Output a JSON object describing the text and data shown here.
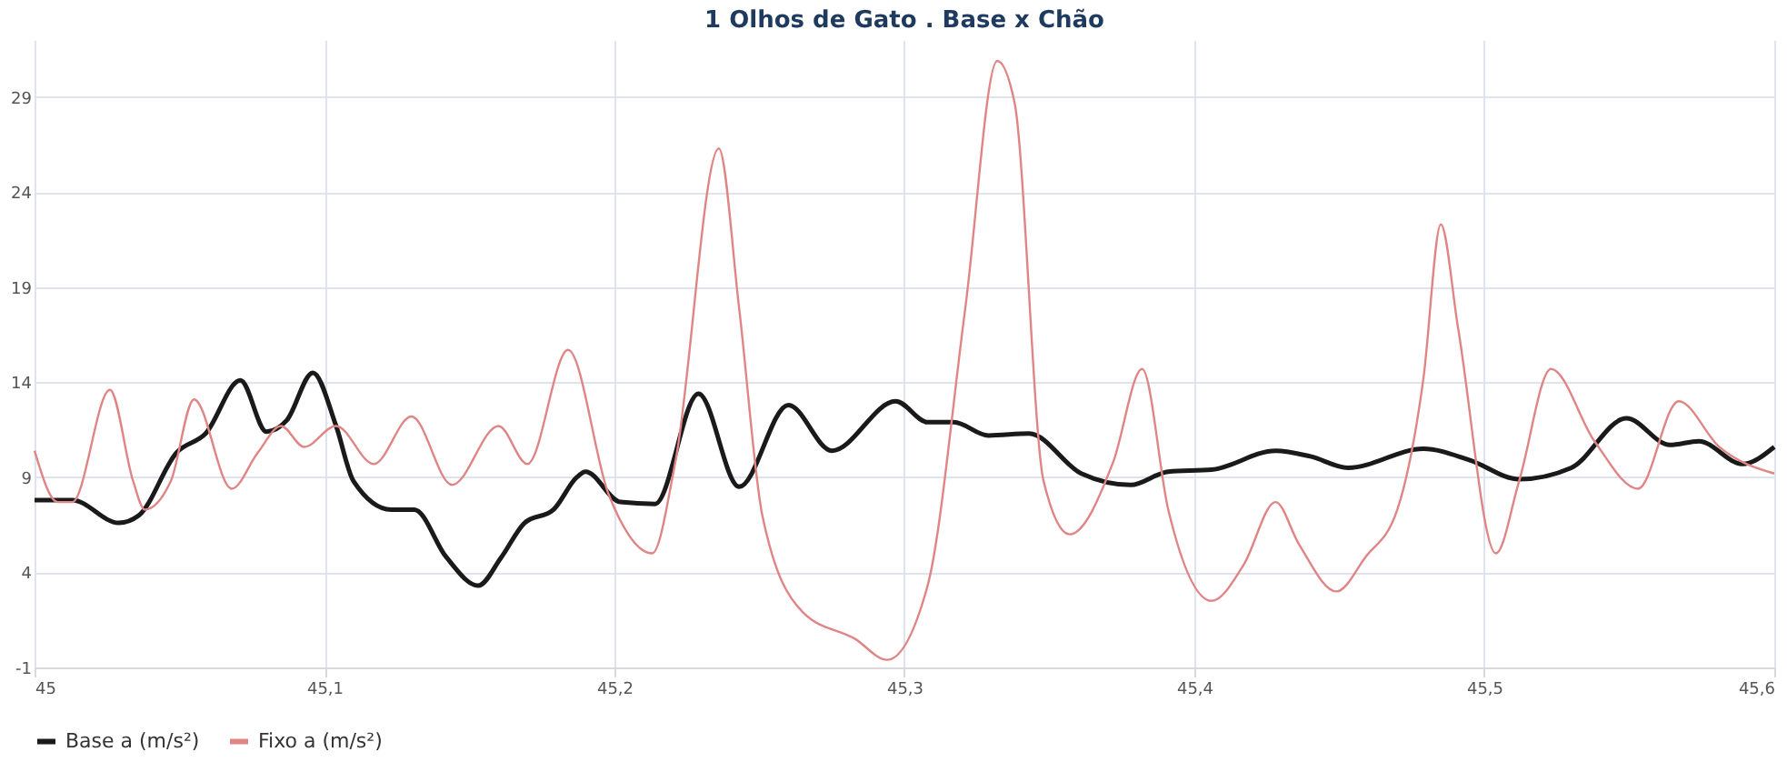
{
  "chart_data": {
    "type": "line",
    "title": "1 Olhos de Gato . Base x Chão",
    "series": [
      {
        "name": "Base a (m/s²)",
        "color": "#1a1a1a",
        "x": [
          45.0,
          45.013,
          45.029,
          45.036,
          45.049,
          45.059,
          45.071,
          45.08,
          45.087,
          45.096,
          45.104,
          45.11,
          45.123,
          45.131,
          45.142,
          45.153,
          45.161,
          45.169,
          45.179,
          45.187,
          45.19,
          45.202,
          45.214,
          45.229,
          45.243,
          45.26,
          45.275,
          45.297,
          45.308,
          45.317,
          45.329,
          45.343,
          45.361,
          45.378,
          45.391,
          45.406,
          45.428,
          45.44,
          45.453,
          45.479,
          45.495,
          45.512,
          45.53,
          45.549,
          45.564,
          45.574,
          45.589,
          45.6
        ],
        "values": [
          7.8,
          7.8,
          6.6,
          7.0,
          10.3,
          11.3,
          14.1,
          11.4,
          12.0,
          14.5,
          11.7,
          8.8,
          7.3,
          7.3,
          4.8,
          3.3,
          4.8,
          6.6,
          7.3,
          9.0,
          9.3,
          7.7,
          7.6,
          13.4,
          8.5,
          12.8,
          10.4,
          13.0,
          11.9,
          11.9,
          11.2,
          11.3,
          9.2,
          8.6,
          9.3,
          9.4,
          10.4,
          10.1,
          9.5,
          10.5,
          9.9,
          8.9,
          9.5,
          12.1,
          10.7,
          10.9,
          9.7,
          10.6
        ]
      },
      {
        "name": "Fixo a (m/s²)",
        "color": "#e08585",
        "x": [
          45.0,
          45.008,
          45.013,
          45.026,
          45.034,
          45.038,
          45.047,
          45.055,
          45.068,
          45.077,
          45.085,
          45.093,
          45.104,
          45.117,
          45.13,
          45.144,
          45.16,
          45.17,
          45.184,
          45.198,
          45.213,
          45.221,
          45.236,
          45.243,
          45.251,
          45.265,
          45.283,
          45.294,
          45.308,
          45.321,
          45.332,
          45.338,
          45.348,
          45.357,
          45.372,
          45.382,
          45.391,
          45.406,
          45.417,
          45.428,
          45.436,
          45.449,
          45.459,
          45.47,
          45.479,
          45.485,
          45.491,
          45.504,
          45.512,
          45.523,
          45.538,
          45.553,
          45.567,
          45.581,
          45.6
        ],
        "values": [
          10.4,
          7.7,
          7.7,
          13.6,
          8.8,
          7.3,
          8.8,
          13.1,
          8.4,
          10.3,
          11.7,
          10.6,
          11.7,
          9.7,
          12.2,
          8.6,
          11.7,
          9.7,
          15.7,
          8.1,
          5.0,
          9.8,
          26.3,
          17.9,
          7.0,
          1.9,
          0.5,
          -0.6,
          3.3,
          17.9,
          30.9,
          28.7,
          8.8,
          6.0,
          9.8,
          14.7,
          7.3,
          2.5,
          4.4,
          7.7,
          5.5,
          3.0,
          4.8,
          7.3,
          14.2,
          22.3,
          16.8,
          5.0,
          8.8,
          14.7,
          10.9,
          8.4,
          13.0,
          10.6,
          9.2
        ]
      }
    ],
    "xlim": [
      45,
      45.6
    ],
    "xticks": [
      45,
      {
        "value": 45.1,
        "label": "45,1"
      },
      {
        "value": 45.2,
        "label": "45,2"
      },
      {
        "value": 45.3,
        "label": "45,3"
      },
      {
        "value": 45.4,
        "label": "45,4"
      },
      {
        "value": 45.5,
        "label": "45,5"
      },
      {
        "value": 45.6,
        "label": "45,6"
      }
    ],
    "ylim": [
      -1,
      32
    ],
    "yticks": [
      -1,
      4,
      9,
      14,
      19,
      24,
      29
    ],
    "grid": true,
    "legend": "bottom",
    "marker": "none",
    "line_style": "solid"
  }
}
